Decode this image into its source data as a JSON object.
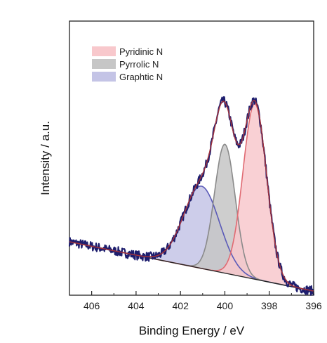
{
  "chart_data": {
    "type": "area",
    "xlabel": "Binding Energy / eV",
    "ylabel": "Intensity / a.u.",
    "xlim": [
      407,
      396
    ],
    "ylim": [
      0,
      1
    ],
    "x_reversed": true,
    "x_ticks": [
      406,
      404,
      402,
      400,
      398,
      396
    ],
    "y_ticks_shown": false,
    "grid": false,
    "legend_position": "top-left",
    "baseline": {
      "start": 0.195,
      "end": 0.015
    },
    "series": [
      {
        "name": "Pyridinic N",
        "peak_center": 398.65,
        "peak_height": 0.64,
        "fwhm": 1.25,
        "fill": "#f8c8cc",
        "stroke": "#e06a72"
      },
      {
        "name": "Pyrrolic N",
        "peak_center": 400.0,
        "peak_height": 0.47,
        "fwhm": 1.1,
        "fill": "#c6c6c6",
        "stroke": "#8a8a8a"
      },
      {
        "name": "Graphtic N",
        "peak_center": 401.05,
        "peak_height": 0.3,
        "fwhm": 1.9,
        "fill": "#c4c4e6",
        "stroke": "#5a5ab8"
      }
    ],
    "fit_envelope_color": "#a0323c",
    "raw_data_color": "#1e1e6e",
    "background_line_color": "#222222"
  }
}
